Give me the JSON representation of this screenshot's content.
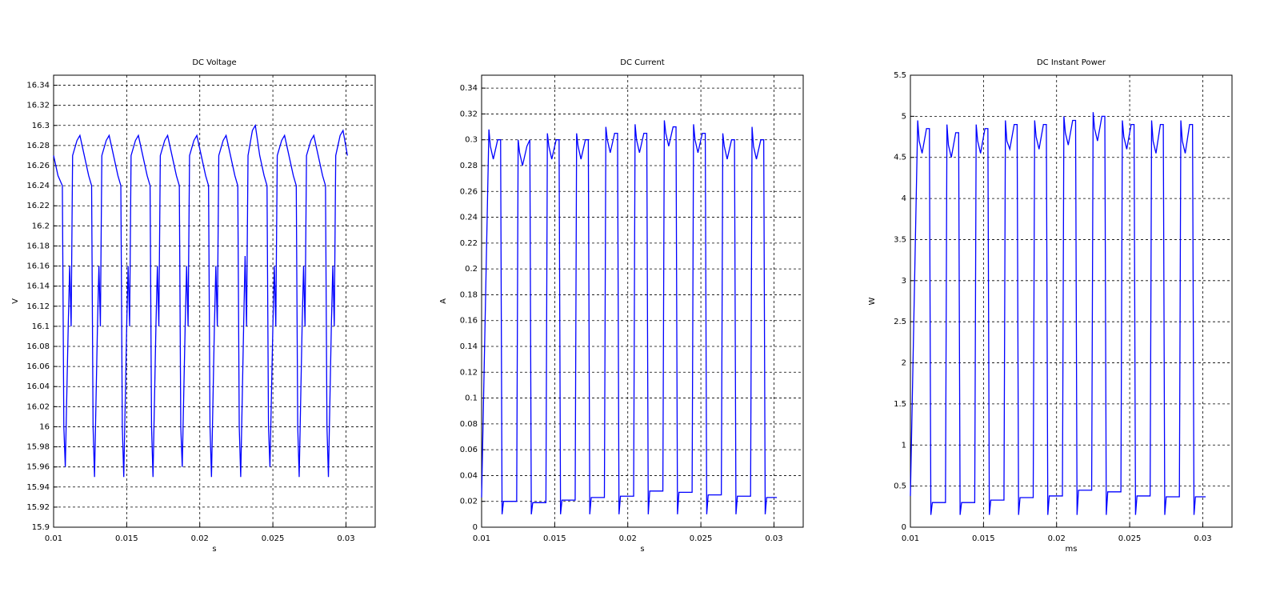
{
  "chart_data": [
    {
      "type": "line",
      "title": "DC Voltage",
      "xlabel": "s",
      "ylabel": "V",
      "color": "#0000ff",
      "grid": true,
      "xlim": [
        0.01,
        0.032
      ],
      "ylim": [
        15.9,
        16.35
      ],
      "xticks": [
        0.01,
        0.015,
        0.02,
        0.025,
        0.03
      ],
      "yticks": [
        15.9,
        15.92,
        15.94,
        15.96,
        15.98,
        16,
        16.02,
        16.04,
        16.06,
        16.08,
        16.1,
        16.12,
        16.14,
        16.16,
        16.18,
        16.2,
        16.22,
        16.24,
        16.26,
        16.28,
        16.3,
        16.32,
        16.34
      ],
      "x": [
        0.01,
        0.0103,
        0.0106,
        0.0107,
        0.0108,
        0.011,
        0.0111,
        0.0112,
        0.0113,
        0.0116,
        0.0118,
        0.0121,
        0.0124,
        0.0126,
        0.0127,
        0.0128,
        0.013,
        0.0131,
        0.0132,
        0.0133,
        0.0136,
        0.0138,
        0.0141,
        0.0144,
        0.0146,
        0.0147,
        0.0148,
        0.015,
        0.0151,
        0.0152,
        0.0153,
        0.0156,
        0.0158,
        0.0161,
        0.0164,
        0.0166,
        0.0167,
        0.0168,
        0.017,
        0.0171,
        0.0172,
        0.0173,
        0.0176,
        0.0178,
        0.0181,
        0.0184,
        0.0186,
        0.0187,
        0.0188,
        0.019,
        0.0191,
        0.0192,
        0.0193,
        0.0196,
        0.0198,
        0.0201,
        0.0204,
        0.0206,
        0.0207,
        0.0208,
        0.021,
        0.0211,
        0.0212,
        0.0213,
        0.0216,
        0.0218,
        0.0221,
        0.0224,
        0.0226,
        0.0227,
        0.0228,
        0.023,
        0.0231,
        0.0232,
        0.0233,
        0.0236,
        0.0238,
        0.0241,
        0.0244,
        0.0246,
        0.0247,
        0.0248,
        0.025,
        0.0251,
        0.0252,
        0.0253,
        0.0256,
        0.0258,
        0.0261,
        0.0264,
        0.0266,
        0.0267,
        0.0268,
        0.027,
        0.0271,
        0.0272,
        0.0273,
        0.0276,
        0.0278,
        0.0281,
        0.0284,
        0.0286,
        0.0287,
        0.0288,
        0.029,
        0.0291,
        0.0292,
        0.0293,
        0.0296,
        0.0298,
        0.0301
      ],
      "values": [
        16.27,
        16.25,
        16.24,
        16.0,
        15.96,
        16.1,
        16.16,
        16.1,
        16.27,
        16.285,
        16.29,
        16.27,
        16.25,
        16.24,
        16.0,
        15.95,
        16.1,
        16.16,
        16.1,
        16.27,
        16.285,
        16.29,
        16.27,
        16.25,
        16.24,
        16.0,
        15.95,
        16.1,
        16.16,
        16.1,
        16.27,
        16.285,
        16.29,
        16.27,
        16.25,
        16.24,
        16.0,
        15.95,
        16.1,
        16.16,
        16.1,
        16.27,
        16.285,
        16.29,
        16.27,
        16.25,
        16.24,
        16.0,
        15.96,
        16.1,
        16.16,
        16.1,
        16.27,
        16.285,
        16.29,
        16.27,
        16.25,
        16.24,
        16.0,
        15.95,
        16.1,
        16.16,
        16.1,
        16.27,
        16.285,
        16.29,
        16.27,
        16.25,
        16.24,
        16.0,
        15.95,
        16.1,
        16.17,
        16.1,
        16.27,
        16.295,
        16.3,
        16.27,
        16.25,
        16.24,
        16.0,
        15.96,
        16.1,
        16.16,
        16.1,
        16.27,
        16.285,
        16.29,
        16.27,
        16.25,
        16.24,
        16.0,
        15.95,
        16.1,
        16.16,
        16.1,
        16.27,
        16.285,
        16.29,
        16.27,
        16.25,
        16.24,
        16.0,
        15.95,
        16.1,
        16.16,
        16.1,
        16.27,
        16.29,
        16.295,
        16.27
      ]
    },
    {
      "type": "line",
      "title": "DC Current",
      "xlabel": "s",
      "ylabel": "A",
      "color": "#0000ff",
      "grid": true,
      "xlim": [
        0.01,
        0.032
      ],
      "ylim": [
        0,
        0.35
      ],
      "xticks": [
        0.01,
        0.015,
        0.02,
        0.025,
        0.03
      ],
      "yticks": [
        0,
        0.02,
        0.04,
        0.06,
        0.08,
        0.1,
        0.12,
        0.14,
        0.16,
        0.18,
        0.2,
        0.22,
        0.24,
        0.26,
        0.28,
        0.3,
        0.32,
        0.34
      ],
      "x": [
        0.01,
        0.0105,
        0.0106,
        0.0108,
        0.0111,
        0.0113,
        0.0114,
        0.0115,
        0.0124,
        0.0125,
        0.0126,
        0.0128,
        0.0131,
        0.0133,
        0.0134,
        0.0135,
        0.0144,
        0.0145,
        0.0146,
        0.0148,
        0.0151,
        0.0153,
        0.0154,
        0.0155,
        0.0164,
        0.0165,
        0.0166,
        0.0168,
        0.0171,
        0.0173,
        0.0174,
        0.0175,
        0.0184,
        0.0185,
        0.0186,
        0.0188,
        0.0191,
        0.0193,
        0.0194,
        0.0195,
        0.0204,
        0.0205,
        0.0206,
        0.0208,
        0.0211,
        0.0213,
        0.0214,
        0.0215,
        0.0224,
        0.0225,
        0.0226,
        0.0228,
        0.0231,
        0.0233,
        0.0234,
        0.0235,
        0.0244,
        0.0245,
        0.0246,
        0.0248,
        0.0251,
        0.0253,
        0.0254,
        0.0255,
        0.0264,
        0.0265,
        0.0266,
        0.0268,
        0.0271,
        0.0273,
        0.0274,
        0.0275,
        0.0284,
        0.0285,
        0.0286,
        0.0288,
        0.0291,
        0.0293,
        0.0294,
        0.0295,
        0.0302
      ],
      "values": [
        0.023,
        0.308,
        0.295,
        0.285,
        0.3,
        0.3,
        0.01,
        0.02,
        0.02,
        0.3,
        0.29,
        0.28,
        0.295,
        0.3,
        0.01,
        0.019,
        0.019,
        0.305,
        0.295,
        0.285,
        0.3,
        0.3,
        0.01,
        0.021,
        0.021,
        0.305,
        0.295,
        0.285,
        0.3,
        0.3,
        0.01,
        0.023,
        0.023,
        0.31,
        0.3,
        0.29,
        0.305,
        0.305,
        0.01,
        0.024,
        0.024,
        0.312,
        0.3,
        0.29,
        0.305,
        0.305,
        0.01,
        0.028,
        0.028,
        0.315,
        0.305,
        0.295,
        0.31,
        0.31,
        0.01,
        0.027,
        0.027,
        0.312,
        0.3,
        0.29,
        0.305,
        0.305,
        0.01,
        0.025,
        0.025,
        0.305,
        0.295,
        0.285,
        0.3,
        0.3,
        0.01,
        0.024,
        0.024,
        0.31,
        0.295,
        0.285,
        0.3,
        0.3,
        0.01,
        0.023,
        0.023
      ]
    },
    {
      "type": "line",
      "title": "DC Instant Power",
      "xlabel": "ms",
      "ylabel": "W",
      "color": "#0000ff",
      "grid": true,
      "xlim": [
        0.01,
        0.032
      ],
      "ylim": [
        0,
        5.5
      ],
      "xticks": [
        0.01,
        0.015,
        0.02,
        0.025,
        0.03
      ],
      "yticks": [
        0,
        0.5,
        1,
        1.5,
        2,
        2.5,
        3,
        3.5,
        4,
        4.5,
        5,
        5.5
      ],
      "x": [
        0.01,
        0.0105,
        0.0106,
        0.0108,
        0.0111,
        0.0113,
        0.0114,
        0.0115,
        0.0124,
        0.0125,
        0.0126,
        0.0128,
        0.0131,
        0.0133,
        0.0134,
        0.0135,
        0.0144,
        0.0145,
        0.0146,
        0.0148,
        0.0151,
        0.0153,
        0.0154,
        0.0155,
        0.0164,
        0.0165,
        0.0166,
        0.0168,
        0.0171,
        0.0173,
        0.0174,
        0.0175,
        0.0184,
        0.0185,
        0.0186,
        0.0188,
        0.0191,
        0.0193,
        0.0194,
        0.0195,
        0.0204,
        0.0205,
        0.0206,
        0.0208,
        0.0211,
        0.0213,
        0.0214,
        0.0215,
        0.0224,
        0.0225,
        0.0226,
        0.0228,
        0.0231,
        0.0233,
        0.0234,
        0.0235,
        0.0244,
        0.0245,
        0.0246,
        0.0248,
        0.0251,
        0.0253,
        0.0254,
        0.0255,
        0.0264,
        0.0265,
        0.0266,
        0.0268,
        0.0271,
        0.0273,
        0.0274,
        0.0275,
        0.0284,
        0.0285,
        0.0286,
        0.0288,
        0.0291,
        0.0293,
        0.0294,
        0.0295,
        0.0302
      ],
      "values": [
        0.38,
        4.95,
        4.7,
        4.55,
        4.85,
        4.85,
        0.15,
        0.3,
        0.3,
        4.9,
        4.65,
        4.5,
        4.8,
        4.8,
        0.15,
        0.3,
        0.3,
        4.9,
        4.7,
        4.55,
        4.85,
        4.85,
        0.15,
        0.33,
        0.33,
        4.95,
        4.7,
        4.6,
        4.9,
        4.9,
        0.15,
        0.36,
        0.36,
        4.95,
        4.75,
        4.6,
        4.9,
        4.9,
        0.15,
        0.38,
        0.38,
        5.0,
        4.8,
        4.65,
        4.95,
        4.95,
        0.15,
        0.45,
        0.45,
        5.05,
        4.85,
        4.7,
        5.0,
        5.0,
        0.15,
        0.43,
        0.43,
        4.95,
        4.75,
        4.6,
        4.9,
        4.9,
        0.15,
        0.38,
        0.38,
        4.95,
        4.7,
        4.55,
        4.9,
        4.9,
        0.15,
        0.37,
        0.37,
        4.95,
        4.7,
        4.55,
        4.9,
        4.9,
        0.15,
        0.37,
        0.37
      ]
    }
  ]
}
